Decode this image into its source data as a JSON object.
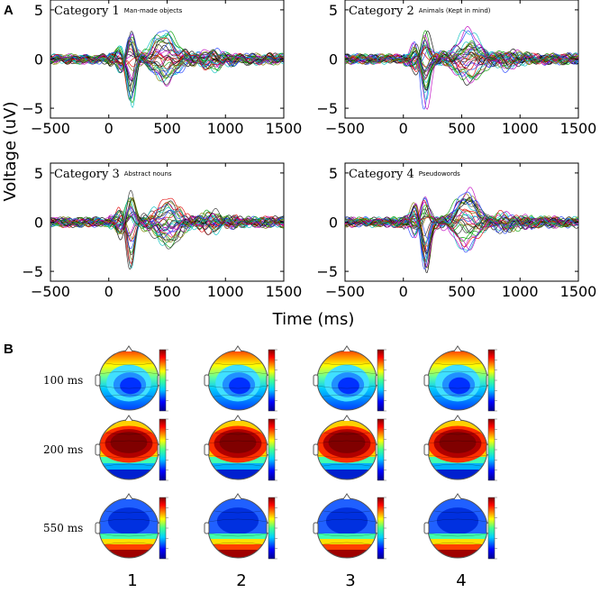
{
  "panel_a_letter": "A",
  "panel_b_letter": "B",
  "chart_data": [
    {
      "type": "line",
      "category_label": "Category 1",
      "subtitle": "Man-made objects",
      "xlabel": "Time (ms)",
      "ylabel": "Voltage (uV)",
      "xlim": [
        -500,
        1500
      ],
      "ylim": [
        -6,
        6
      ],
      "x_ticks": [
        -500,
        0,
        500,
        1000,
        1500
      ],
      "y_ticks": [
        5,
        0,
        -5
      ],
      "x_tick_labels": [
        "−500",
        "0",
        "500",
        "1000",
        "1500"
      ],
      "y_tick_labels": [
        "5",
        "0",
        "−5"
      ],
      "n_channels": 32,
      "components": [
        {
          "t": 100,
          "amp": 1.8
        },
        {
          "t": 190,
          "amp": -4.6
        },
        {
          "t": 480,
          "amp": 3.2
        }
      ]
    },
    {
      "type": "line",
      "category_label": "Category 2",
      "subtitle": "Animals (Kept in mind)",
      "xlabel": "Time (ms)",
      "ylabel": "Voltage (uV)",
      "xlim": [
        -500,
        1500
      ],
      "ylim": [
        -6,
        6
      ],
      "x_ticks": [
        -500,
        0,
        500,
        1000,
        1500
      ],
      "y_ticks": [
        5,
        0,
        -5
      ],
      "x_tick_labels": [
        "−500",
        "0",
        "500",
        "1000",
        "1500"
      ],
      "y_tick_labels": [
        "5",
        "0",
        "−5"
      ],
      "n_channels": 32,
      "components": [
        {
          "t": 100,
          "amp": 1.9
        },
        {
          "t": 190,
          "amp": -4.9
        },
        {
          "t": 560,
          "amp": 3.5
        }
      ]
    },
    {
      "type": "line",
      "category_label": "Category 3",
      "subtitle": "Abstract nouns",
      "xlabel": "Time (ms)",
      "ylabel": "Voltage (uV)",
      "xlim": [
        -500,
        1500
      ],
      "ylim": [
        -6,
        6
      ],
      "x_ticks": [
        -500,
        0,
        500,
        1000,
        1500
      ],
      "y_ticks": [
        5,
        0,
        -5
      ],
      "x_tick_labels": [
        "−500",
        "0",
        "500",
        "1000",
        "1500"
      ],
      "y_tick_labels": [
        "5",
        "0",
        "−5"
      ],
      "n_channels": 32,
      "components": [
        {
          "t": 100,
          "amp": 1.9
        },
        {
          "t": 190,
          "amp": -5.1
        },
        {
          "t": 500,
          "amp": 3.3
        }
      ]
    },
    {
      "type": "line",
      "category_label": "Category 4",
      "subtitle": "Pseudowords",
      "xlabel": "Time (ms)",
      "ylabel": "Voltage (uV)",
      "xlim": [
        -500,
        1500
      ],
      "ylim": [
        -6,
        6
      ],
      "x_ticks": [
        -500,
        0,
        500,
        1000,
        1500
      ],
      "y_ticks": [
        5,
        0,
        -5
      ],
      "x_tick_labels": [
        "−500",
        "0",
        "500",
        "1000",
        "1500"
      ],
      "y_tick_labels": [
        "5",
        "0",
        "−5"
      ],
      "n_channels": 32,
      "components": [
        {
          "t": 100,
          "amp": 2.0
        },
        {
          "t": 190,
          "amp": -5.0
        },
        {
          "t": 540,
          "amp": 3.4
        }
      ]
    }
  ],
  "shared_xlabel": "Time (ms)",
  "shared_ylabel": "Voltage (uV)",
  "topomaps": {
    "time_labels": [
      "100 ms",
      "200 ms",
      "550 ms"
    ],
    "category_labels": [
      "1",
      "2",
      "3",
      "4"
    ],
    "patterns": [
      "central-negative",
      "frontal-positive",
      "frontal-negative"
    ]
  },
  "colors": {
    "trace_palette": [
      "#000000",
      "#1f3fff",
      "#00a000",
      "#e00000",
      "#00c0c0",
      "#c000c0",
      "#808000",
      "#303030"
    ]
  }
}
